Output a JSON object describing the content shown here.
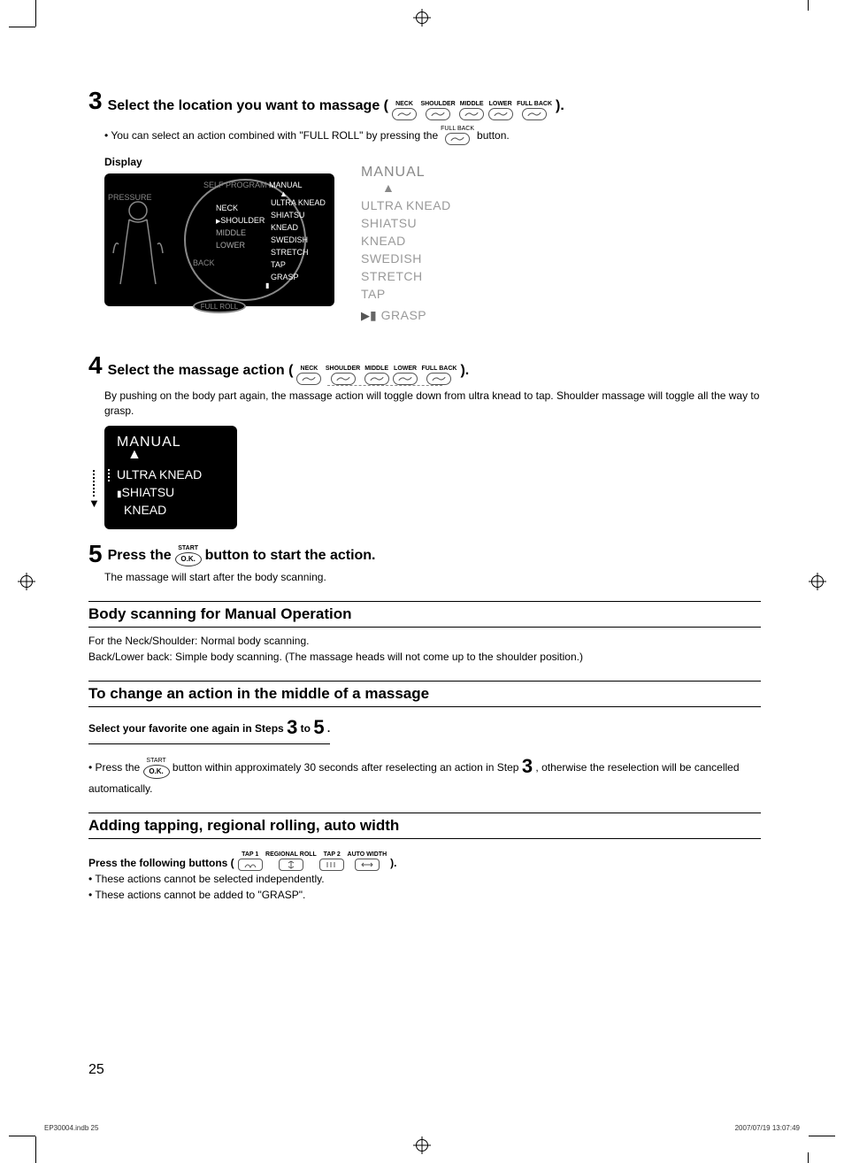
{
  "colors": {
    "text": "#000000",
    "panel_bg": "#000000",
    "panel_dim": "#888888",
    "panel_bright": "#ffffff",
    "menu_gray": "#999999",
    "body_bg": "#ffffff"
  },
  "location_buttons": [
    "NECK",
    "SHOULDER",
    "MIDDLE",
    "LOWER",
    "FULL BACK"
  ],
  "step3": {
    "num": "3",
    "title_a": "Select the location you want to massage (",
    "title_b": ").",
    "bullet_a": "• You can select an action combined with \"FULL ROLL\" by pressing the",
    "bullet_btn": "FULL BACK",
    "bullet_b": "button."
  },
  "display_label": "Display",
  "panel": {
    "self_program": "SELF PROGRAM",
    "manual": "MANUAL",
    "pressure": "PRESSURE",
    "left_col": [
      "NECK",
      "SHOULDER",
      "MIDDLE",
      "LOWER"
    ],
    "back": "BACK",
    "right_col": [
      "ULTRA KNEAD",
      "SHIATSU",
      "KNEAD",
      "SWEDISH",
      "STRETCH",
      "TAP",
      "GRASP"
    ],
    "full_roll": "FULL ROLL"
  },
  "manual_menu": {
    "title": "MANUAL",
    "items": [
      "ULTRA KNEAD",
      "SHIATSU",
      "KNEAD",
      "SWEDISH",
      "STRETCH",
      "TAP",
      "GRASP"
    ]
  },
  "step4": {
    "num": "4",
    "title_a": "Select the massage action (",
    "title_b": ").",
    "body": "By pushing on the body part again, the massage action will toggle down from ultra knead to tap. Shoulder massage will toggle all the way to grasp."
  },
  "dark_manual": {
    "title": "MANUAL",
    "items": [
      "ULTRA KNEAD",
      "SHIATSU",
      "KNEAD"
    ]
  },
  "step5": {
    "num": "5",
    "title_a": "Press the ",
    "ok_label_top": "START",
    "ok_label": "O.K.",
    "title_b": " button to start the action.",
    "body": "The massage will start after the body scanning."
  },
  "body_scan": {
    "heading": "Body scanning for Manual Operation",
    "l1": "For the Neck/Shoulder: Normal body scanning.",
    "l2": "Back/Lower back: Simple body scanning. (The massage heads will not come up to the shoulder position.)"
  },
  "change_action": {
    "heading": "To change an action in the middle of a massage",
    "bold_a": "Select your favorite one again in Steps ",
    "big3": "3",
    "bold_mid": " to ",
    "big5": "5",
    "bold_b": " .",
    "bullet_a": "• Press the ",
    "bullet_b": " button within approximately 30 seconds after reselecting an action in Step ",
    "bullet_c": " , otherwise the reselection will be cancelled automatically."
  },
  "adding": {
    "heading": "Adding tapping, regional rolling, auto width",
    "bold_a": "Press the following buttons (",
    "buttons": [
      {
        "top": "TAP 1",
        "glyph": "tap1"
      },
      {
        "top": "REGIONAL ROLL",
        "glyph": "roll"
      },
      {
        "top": "TAP 2",
        "glyph": "tap2"
      },
      {
        "top": "AUTO WIDTH",
        "glyph": "width"
      }
    ],
    "bold_b": " ).",
    "b1": "• These actions cannot be selected independently.",
    "b2": "• These actions cannot be added to \"GRASP\"."
  },
  "page_number": "25",
  "footer": {
    "left": "EP30004.indb   25",
    "right": "2007/07/19   13:07:49"
  }
}
